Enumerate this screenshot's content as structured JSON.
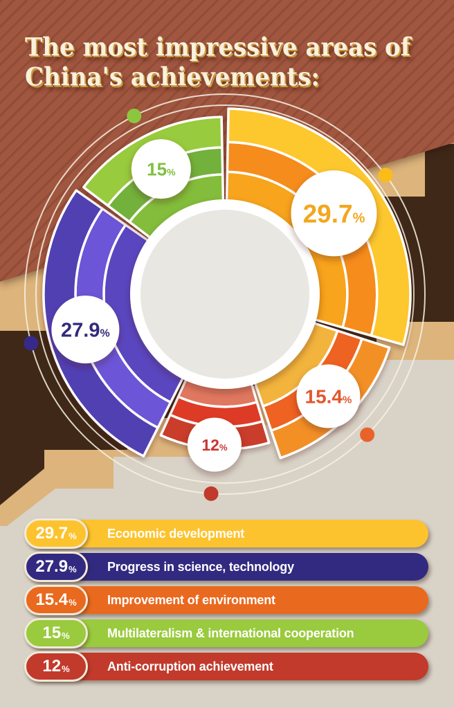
{
  "title": {
    "lines": [
      "The most impressive areas of",
      "China's achievements:"
    ],
    "full": "The most impressive areas of China's achievements:"
  },
  "chart_data": {
    "type": "pie",
    "subtype": "multi-ring-donut",
    "title": "The most impressive areas of China's achievements",
    "unit": "%",
    "total": 100,
    "start_angle_deg": 0,
    "direction": "clockwise",
    "legend_position": "bottom",
    "arc_order": [
      0,
      2,
      4,
      1,
      3
    ],
    "series": [
      {
        "label": "Economic development",
        "value": 29.7,
        "display": "29.7",
        "wedge_colors": [
          "#f8a41f",
          "#f58c1d",
          "#fdc72e"
        ],
        "number_color": "#f2a71d",
        "dot_color": "#fbbc19",
        "legend_color": "#fdc32e",
        "outer_r": 268,
        "badge_r": 62,
        "badge_dist": 196
      },
      {
        "label": "Progress in science, technology",
        "value": 27.9,
        "display": "27.9",
        "wedge_colors": [
          "#5a46c0",
          "#6c55d6",
          "#5140b2"
        ],
        "number_color": "#332a7c",
        "dot_color": "#37298a",
        "legend_color": "#322a80",
        "outer_r": 262,
        "badge_r": 49,
        "badge_dist": 208
      },
      {
        "label": "Improvement of environment",
        "value": 15.4,
        "display": "15.4",
        "wedge_colors": [
          "#f2b43c",
          "#ee6224",
          "#f29026"
        ],
        "number_color": "#e2572a",
        "dot_color": "#e8632a",
        "legend_color": "#e9691f",
        "outer_r": 250,
        "badge_r": 46,
        "badge_dist": 210
      },
      {
        "label": "Multilateralism & international cooperation",
        "value": 15,
        "display": "15",
        "wedge_colors": [
          "#83bd3b",
          "#72b13a",
          "#98cb3e"
        ],
        "number_color": "#7fbf3c",
        "dot_color": "#8cc63f",
        "legend_color": "#9aca3d",
        "outer_r": 256,
        "badge_r": 43,
        "badge_dist": 203
      },
      {
        "label": "Anti-corruption achievement",
        "value": 12,
        "display": "12",
        "wedge_colors": [
          "#e0785f",
          "#de3b28",
          "#c93c2a"
        ],
        "number_color": "#c73530",
        "dot_color": "#c0392b",
        "legend_color": "#c23a2b",
        "outer_r": 224,
        "badge_r": 39,
        "badge_dist": 218
      }
    ]
  },
  "colors": {
    "hatch_base": "#a0563f",
    "hatch_stripe": "#8d4a34",
    "tan_band": "#dcb47c",
    "dark_band": "#3f2817",
    "bottom_area": "#d8d2c7",
    "orbit_line": "#f8f2e3",
    "center_circle": "#e9e7e2",
    "title_text": "#f8f1dc",
    "title_shadow": "#cf9d3a",
    "legend_badge_border": "#f2ead9",
    "legend_text": "#ffffff"
  }
}
